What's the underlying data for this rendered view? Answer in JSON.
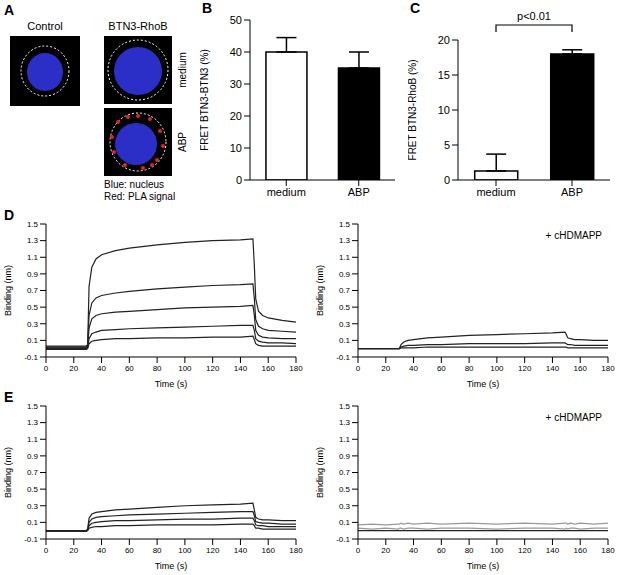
{
  "panel_a": {
    "panel": "A",
    "control_label": "Control",
    "group_label": "BTN3-RhoB",
    "row_labels": [
      "medium",
      "ABP"
    ],
    "legend_lines": [
      "Blue: nucleus",
      "Red: PLA signal"
    ]
  },
  "chart_data": [
    {
      "panel": "B",
      "type": "bar",
      "categories": [
        "medium",
        "ABP"
      ],
      "values": [
        40,
        35
      ],
      "errors": [
        4.5,
        5
      ],
      "colors": [
        "#ffffff",
        "#000000"
      ],
      "ylabel": "FRET BTN3-BTN3 (%)",
      "ylim": [
        0,
        50
      ],
      "yticks": [
        0,
        10,
        20,
        30,
        40,
        50
      ],
      "grid": false
    },
    {
      "panel": "C",
      "type": "bar",
      "categories": [
        "medium",
        "ABP"
      ],
      "values": [
        1.3,
        18
      ],
      "errors": [
        2.4,
        0.6
      ],
      "colors": [
        "#ffffff",
        "#000000"
      ],
      "ylabel": "FRET BTN3-RhoB (%)",
      "ylim": [
        0,
        20
      ],
      "yticks": [
        0,
        5,
        10,
        15,
        20
      ],
      "annotation": "p<0.01",
      "grid": false
    },
    {
      "panel": "D",
      "type": "line",
      "xlabel": "Time (s)",
      "ylabel": "Binding (nm)",
      "xlim": [
        0,
        180
      ],
      "xticks": [
        0,
        20,
        40,
        60,
        80,
        100,
        120,
        140,
        160,
        180
      ],
      "ylim": [
        -0.1,
        1.5
      ],
      "yticks": [
        -0.1,
        0.1,
        0.3,
        0.5,
        0.7,
        0.9,
        1.1,
        1.3,
        1.5
      ],
      "grid": false,
      "x": [
        0,
        10,
        20,
        29,
        30,
        31,
        33,
        36,
        40,
        50,
        60,
        80,
        100,
        120,
        140,
        149,
        150,
        151,
        153,
        156,
        160,
        170,
        180
      ],
      "series": [
        {
          "color": "#222222",
          "values": [
            0.03,
            0.03,
            0.03,
            0.03,
            0.05,
            0.75,
            0.98,
            1.08,
            1.13,
            1.18,
            1.21,
            1.25,
            1.28,
            1.3,
            1.31,
            1.32,
            1.0,
            0.6,
            0.45,
            0.4,
            0.37,
            0.34,
            0.32
          ]
        },
        {
          "color": "#222222",
          "values": [
            0.02,
            0.02,
            0.02,
            0.02,
            0.04,
            0.4,
            0.55,
            0.61,
            0.64,
            0.67,
            0.69,
            0.72,
            0.74,
            0.76,
            0.77,
            0.78,
            0.6,
            0.35,
            0.27,
            0.24,
            0.22,
            0.21,
            0.2
          ]
        },
        {
          "color": "#222222",
          "values": [
            0.01,
            0.01,
            0.01,
            0.01,
            0.03,
            0.25,
            0.36,
            0.4,
            0.42,
            0.44,
            0.45,
            0.47,
            0.49,
            0.5,
            0.51,
            0.52,
            0.4,
            0.22,
            0.16,
            0.14,
            0.13,
            0.12,
            0.12
          ]
        },
        {
          "color": "#222222",
          "values": [
            0,
            0,
            0,
            0,
            0.02,
            0.12,
            0.18,
            0.2,
            0.22,
            0.23,
            0.24,
            0.25,
            0.26,
            0.27,
            0.28,
            0.28,
            0.22,
            0.12,
            0.09,
            0.08,
            0.07,
            0.07,
            0.06
          ]
        },
        {
          "color": "#222222",
          "values": [
            -0.01,
            -0.01,
            -0.01,
            -0.01,
            0,
            0.06,
            0.09,
            0.1,
            0.11,
            0.12,
            0.12,
            0.13,
            0.13,
            0.14,
            0.14,
            0.15,
            0.11,
            0.06,
            0.04,
            0.03,
            0.03,
            0.03,
            0.03
          ]
        }
      ]
    },
    {
      "type": "line",
      "annotation": "+ cHDMAPP",
      "xlabel": "Time (s)",
      "ylabel": "Binding (nm)",
      "xlim": [
        0,
        180
      ],
      "xticks": [
        0,
        20,
        40,
        60,
        80,
        100,
        120,
        140,
        160,
        180
      ],
      "ylim": [
        -0.1,
        1.5
      ],
      "yticks": [
        -0.1,
        0.1,
        0.3,
        0.5,
        0.7,
        0.9,
        1.1,
        1.3,
        1.5
      ],
      "grid": false,
      "x": [
        0,
        10,
        20,
        29,
        30,
        31,
        33,
        36,
        40,
        50,
        60,
        80,
        100,
        120,
        140,
        149,
        150,
        151,
        153,
        156,
        160,
        170,
        180
      ],
      "series": [
        {
          "color": "#222222",
          "values": [
            0,
            0,
            0,
            0,
            0.01,
            0.05,
            0.08,
            0.1,
            0.11,
            0.13,
            0.14,
            0.16,
            0.17,
            0.18,
            0.19,
            0.2,
            0.17,
            0.13,
            0.12,
            0.11,
            0.11,
            0.1,
            0.1
          ]
        },
        {
          "color": "#222222",
          "values": [
            0,
            0,
            0,
            0,
            0,
            0.02,
            0.03,
            0.04,
            0.04,
            0.05,
            0.05,
            0.06,
            0.06,
            0.06,
            0.07,
            0.07,
            0.06,
            0.05,
            0.05,
            0.04,
            0.04,
            0.04,
            0.04
          ]
        },
        {
          "color": "#222222",
          "values": [
            0,
            0,
            0,
            0,
            0,
            0.01,
            0.01,
            0.01,
            0.01,
            0.02,
            0.02,
            0.02,
            0.02,
            0.02,
            0.02,
            0.02,
            0.02,
            0.01,
            0.01,
            0.01,
            0.01,
            0.01,
            0.01
          ]
        }
      ]
    },
    {
      "panel": "E",
      "type": "line",
      "xlabel": "Time (s)",
      "ylabel": "Binding (nm)",
      "xlim": [
        0,
        180
      ],
      "xticks": [
        0,
        20,
        40,
        60,
        80,
        100,
        120,
        140,
        160,
        180
      ],
      "ylim": [
        -0.1,
        1.5
      ],
      "yticks": [
        -0.1,
        0.1,
        0.3,
        0.5,
        0.7,
        0.9,
        1.1,
        1.3,
        1.5
      ],
      "grid": false,
      "x": [
        0,
        10,
        20,
        29,
        30,
        31,
        33,
        36,
        40,
        50,
        60,
        80,
        100,
        120,
        140,
        149,
        150,
        151,
        153,
        156,
        160,
        170,
        180
      ],
      "series": [
        {
          "color": "#222222",
          "values": [
            0,
            0,
            0,
            0,
            0.02,
            0.15,
            0.2,
            0.22,
            0.23,
            0.25,
            0.26,
            0.28,
            0.3,
            0.31,
            0.32,
            0.33,
            0.25,
            0.16,
            0.14,
            0.13,
            0.13,
            0.12,
            0.12
          ]
        },
        {
          "color": "#222222",
          "values": [
            0,
            0,
            0,
            0,
            0.01,
            0.1,
            0.14,
            0.16,
            0.17,
            0.18,
            0.19,
            0.2,
            0.21,
            0.22,
            0.23,
            0.23,
            0.18,
            0.11,
            0.1,
            0.09,
            0.09,
            0.08,
            0.08
          ]
        },
        {
          "color": "#222222",
          "values": [
            0,
            0,
            0,
            0,
            0.01,
            0.06,
            0.09,
            0.1,
            0.11,
            0.12,
            0.12,
            0.13,
            0.14,
            0.14,
            0.15,
            0.15,
            0.12,
            0.07,
            0.06,
            0.06,
            0.05,
            0.05,
            0.05
          ]
        },
        {
          "color": "#222222",
          "values": [
            -0.01,
            -0.01,
            -0.01,
            -0.01,
            0,
            0.03,
            0.04,
            0.05,
            0.05,
            0.06,
            0.06,
            0.07,
            0.07,
            0.07,
            0.08,
            0.08,
            0.06,
            0.03,
            0.03,
            0.02,
            0.02,
            0.02,
            0.02
          ]
        }
      ]
    },
    {
      "type": "line",
      "annotation": "+ cHDMAPP",
      "xlabel": "Time (s)",
      "ylabel": "Binding (nm)",
      "xlim": [
        0,
        180
      ],
      "xticks": [
        0,
        20,
        40,
        60,
        80,
        100,
        120,
        140,
        160,
        180
      ],
      "ylim": [
        -0.1,
        1.5
      ],
      "yticks": [
        -0.1,
        0.1,
        0.3,
        0.5,
        0.7,
        0.9,
        1.1,
        1.3,
        1.5
      ],
      "grid": false,
      "x": [
        0,
        10,
        20,
        29,
        30,
        31,
        33,
        36,
        40,
        50,
        60,
        80,
        100,
        120,
        140,
        149,
        150,
        151,
        153,
        156,
        160,
        170,
        180
      ],
      "series": [
        {
          "color": "#999999",
          "values": [
            0.07,
            0.08,
            0.07,
            0.08,
            0.08,
            0.09,
            0.08,
            0.09,
            0.08,
            0.09,
            0.08,
            0.09,
            0.08,
            0.09,
            0.08,
            0.09,
            0.09,
            0.08,
            0.09,
            0.08,
            0.09,
            0.08,
            0.09
          ]
        },
        {
          "color": "#999999",
          "values": [
            0.03,
            0.02,
            0.03,
            0.02,
            0.03,
            0.03,
            0.02,
            0.03,
            0.03,
            0.02,
            0.03,
            0.03,
            0.02,
            0.03,
            0.03,
            0.02,
            0.03,
            0.02,
            0.03,
            0.03,
            0.02,
            0.03,
            0.03
          ]
        },
        {
          "color": "#222222",
          "values": [
            0,
            0,
            0,
            0,
            0,
            0,
            0,
            0,
            0,
            0,
            0,
            0,
            0,
            0,
            0,
            0,
            0,
            0,
            0,
            0,
            0,
            0,
            0
          ]
        }
      ]
    }
  ]
}
